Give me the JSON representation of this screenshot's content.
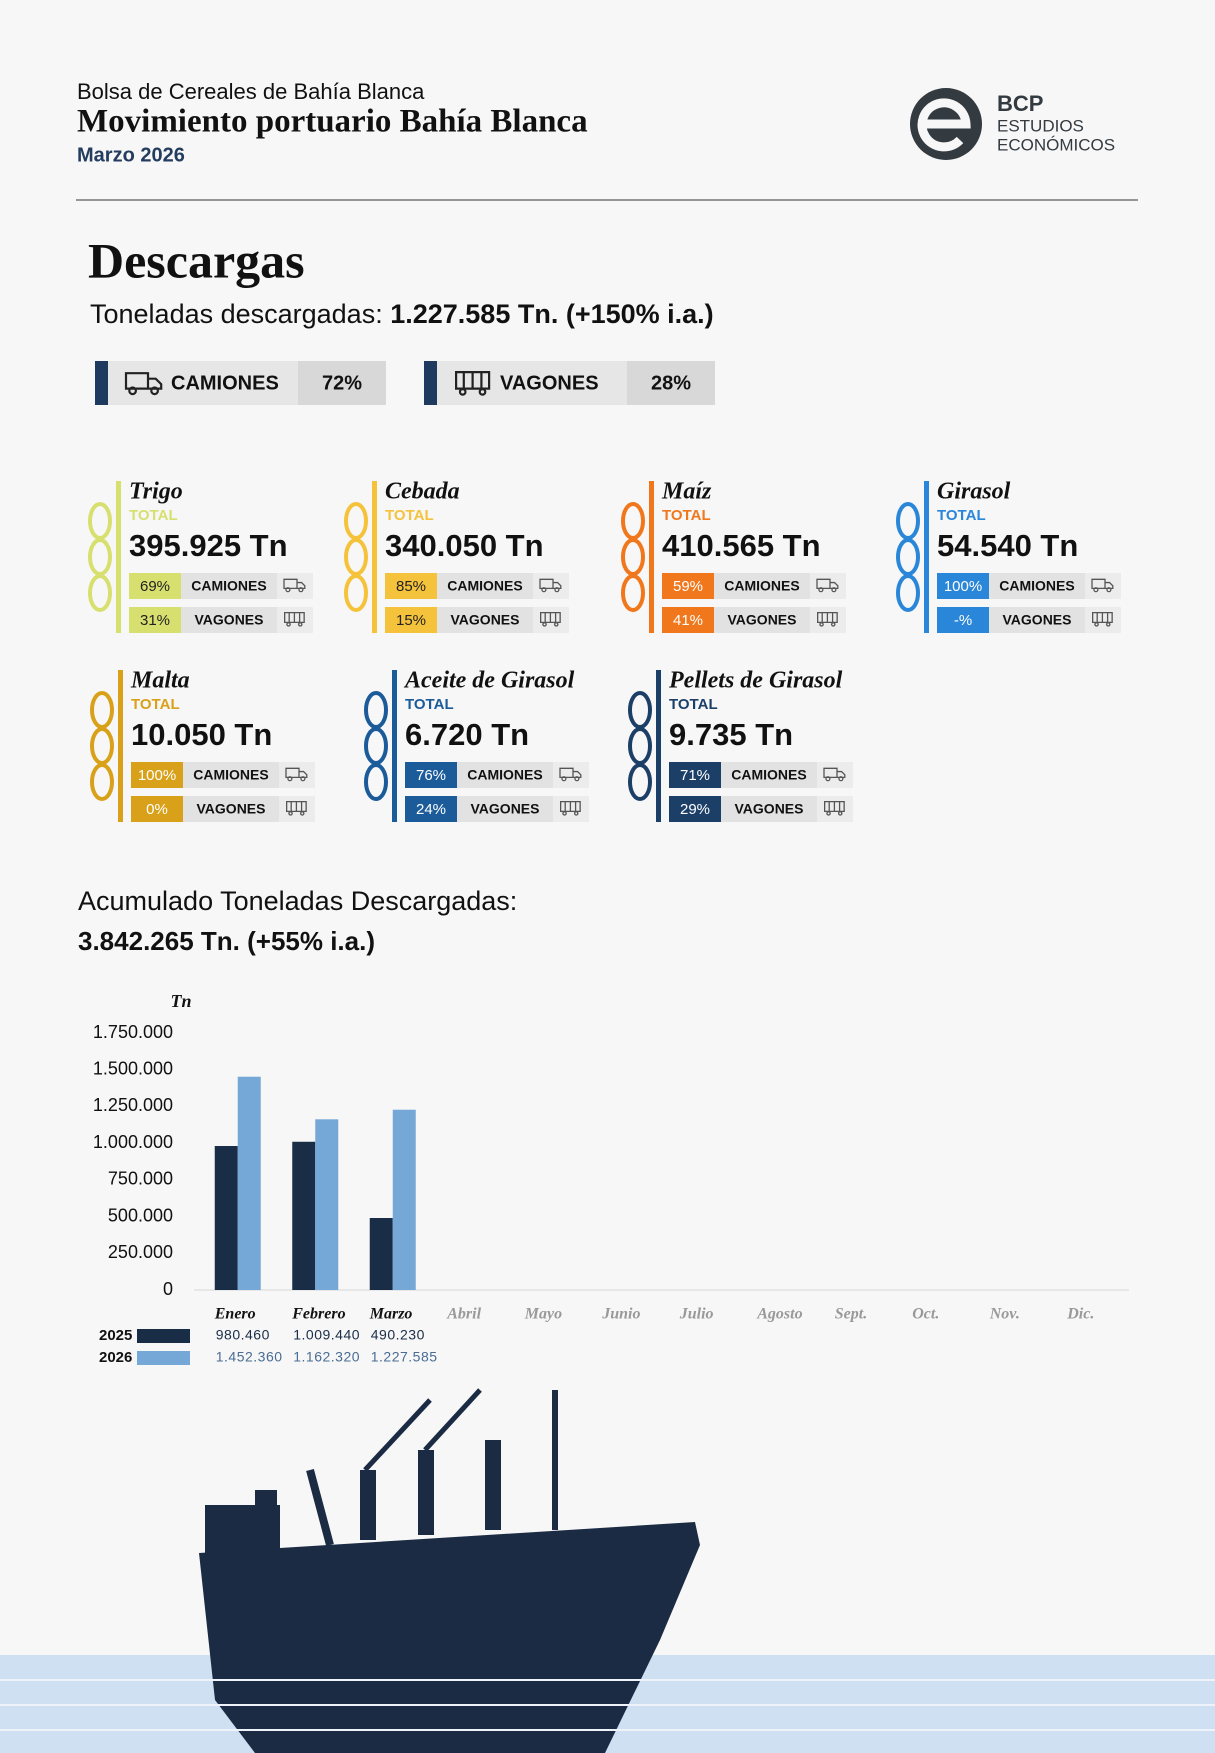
{
  "header": {
    "organization": "Bolsa de Cereales de Bahía Blanca",
    "title": "Movimiento portuario Bahía Blanca",
    "date": "Marzo 2026",
    "logo": {
      "mark": "BCP",
      "line1": "ESTUDIOS",
      "line2": "ECONÓMICOS"
    }
  },
  "descargas": {
    "title": "Descargas",
    "label": "Toneladas descargadas:",
    "value": "1.227.585  Tn. (+150% i.a.)",
    "modes": [
      {
        "name": "CAMIONES",
        "share": "72%"
      },
      {
        "name": "VAGONES",
        "share": "28%"
      }
    ]
  },
  "products": [
    {
      "name": "Trigo",
      "color": "#d7e06f",
      "total_label": "TOTAL",
      "total": "395.925 Tn",
      "rows": [
        {
          "share": "69%",
          "mode": "CAMIONES"
        },
        {
          "share": "31%",
          "mode": "VAGONES"
        }
      ]
    },
    {
      "name": "Cebada",
      "color": "#f5c23c",
      "total_label": "TOTAL",
      "total": "340.050 Tn",
      "rows": [
        {
          "share": "85%",
          "mode": "CAMIONES"
        },
        {
          "share": "15%",
          "mode": "VAGONES"
        }
      ]
    },
    {
      "name": "Maíz",
      "color": "#f0771c",
      "total_label": "TOTAL",
      "total": "410.565 Tn",
      "rows": [
        {
          "share": "59%",
          "mode": "CAMIONES"
        },
        {
          "share": "41%",
          "mode": "VAGONES"
        }
      ]
    },
    {
      "name": "Girasol",
      "color": "#2a86d8",
      "total_label": "TOTAL",
      "total": "54.540 Tn",
      "rows": [
        {
          "share": "100%",
          "mode": "CAMIONES"
        },
        {
          "share": "-%",
          "mode": "VAGONES"
        }
      ]
    },
    {
      "name": "Malta",
      "color": "#d9a11a",
      "total_label": "TOTAL",
      "total": "10.050 Tn",
      "rows": [
        {
          "share": "100%",
          "mode": "CAMIONES"
        },
        {
          "share": "0%",
          "mode": "VAGONES"
        }
      ]
    },
    {
      "name": "Aceite de Girasol",
      "color": "#1b5b9a",
      "total_label": "TOTAL",
      "total": "6.720 Tn",
      "rows": [
        {
          "share": "76%",
          "mode": "CAMIONES"
        },
        {
          "share": "24%",
          "mode": "VAGONES"
        }
      ]
    },
    {
      "name": "Pellets de Girasol",
      "color": "#1c3f68",
      "total_label": "TOTAL",
      "total": "9.735 Tn",
      "rows": [
        {
          "share": "71%",
          "mode": "CAMIONES"
        },
        {
          "share": "29%",
          "mode": "VAGONES"
        }
      ]
    }
  ],
  "accumulated": {
    "label": "Acumulado Toneladas Descargadas:",
    "value": "3.842.265 Tn. (+55% i.a.)"
  },
  "chart_data": {
    "type": "bar",
    "y_label": "Tn",
    "categories": [
      "Enero",
      "Febrero",
      "Marzo",
      "Abril",
      "Mayo",
      "Junio",
      "Julio",
      "Agosto",
      "Sept.",
      "Oct.",
      "Nov.",
      "Dic."
    ],
    "ylim": [
      0,
      1750000
    ],
    "yticks": [
      0,
      {
        "value": 250000,
        "label": "250.000"
      },
      {
        "value": 500000,
        "label": "500.000"
      },
      {
        "value": 750000,
        "label": "750.000"
      },
      {
        "value": 1000000,
        "label": "1.000.000"
      },
      {
        "value": 1250000,
        "label": "1.250.000"
      },
      {
        "value": 1500000,
        "label": "1.500.000"
      },
      {
        "value": 1750000,
        "label": "1.750.000"
      }
    ],
    "series": [
      {
        "name": "2025",
        "color": "#1a2d47",
        "values": [
          980460,
          1009440,
          490230,
          null,
          null,
          null,
          null,
          null,
          null,
          null,
          null,
          null
        ],
        "value_labels": [
          "980.460",
          "1.009.440",
          "490.230",
          null,
          null,
          null,
          null,
          null,
          null,
          null,
          null,
          null
        ]
      },
      {
        "name": "2026",
        "color": "#75a8d6",
        "values": [
          1452360,
          1162320,
          1227585,
          null,
          null,
          null,
          null,
          null,
          null,
          null,
          null,
          null
        ],
        "value_labels": [
          "1.452.360",
          "1.162.320",
          "1.227.585",
          null,
          null,
          null,
          null,
          null,
          null,
          null,
          null,
          null
        ]
      }
    ]
  }
}
